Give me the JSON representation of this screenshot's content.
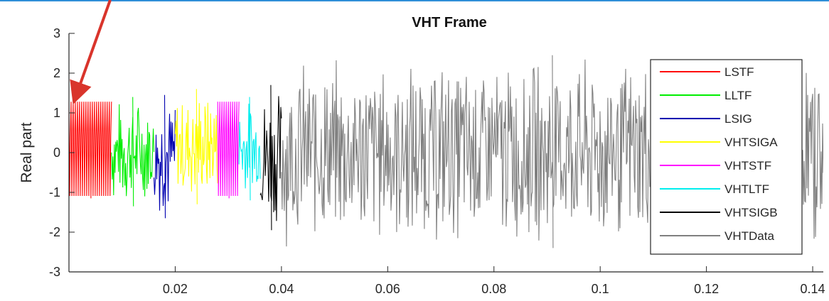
{
  "chart_data": {
    "type": "line",
    "title": "VHT Frame",
    "xlabel": "",
    "ylabel": "Real part",
    "xlim": [
      0.0,
      0.142
    ],
    "ylim": [
      -3,
      3
    ],
    "x_ticks": [
      0.02,
      0.04,
      0.06,
      0.08,
      0.1,
      0.12,
      0.14
    ],
    "x_tick_labels": [
      "0.02",
      "0.04",
      "0.06",
      "0.08",
      "0.1",
      "0.12",
      "0.14"
    ],
    "y_ticks": [
      -3,
      -2,
      -1,
      0,
      1,
      2,
      3
    ],
    "y_tick_labels": [
      "-3",
      "-2",
      "-1",
      "0",
      "1",
      "2",
      "3"
    ],
    "grid": false,
    "legend_position": "right",
    "series": [
      {
        "name": "LSTF",
        "color": "#ff0000",
        "x_range": [
          0.0,
          0.008
        ],
        "y_min": -1.15,
        "y_max": 1.28
      },
      {
        "name": "LLTF",
        "color": "#00ee00",
        "x_range": [
          0.008,
          0.016
        ],
        "y_min": -1.35,
        "y_max": 1.4
      },
      {
        "name": "LSIG",
        "color": "#0000b0",
        "x_range": [
          0.016,
          0.02
        ],
        "y_min": -1.65,
        "y_max": 1.45
      },
      {
        "name": "VHTSIGA",
        "color": "#ffff00",
        "x_range": [
          0.02,
          0.028
        ],
        "y_min": -1.3,
        "y_max": 1.6
      },
      {
        "name": "VHTSTF",
        "color": "#ff00ff",
        "x_range": [
          0.028,
          0.032
        ],
        "y_min": -1.15,
        "y_max": 1.28
      },
      {
        "name": "VHTLTF",
        "color": "#00eeee",
        "x_range": [
          0.032,
          0.036
        ],
        "y_min": -1.2,
        "y_max": 1.4
      },
      {
        "name": "VHTSIGB",
        "color": "#000000",
        "x_range": [
          0.036,
          0.04
        ],
        "y_min": -1.95,
        "y_max": 1.7
      },
      {
        "name": "VHTData",
        "color": "#808080",
        "x_range": [
          0.04,
          0.142
        ],
        "y_min": -2.4,
        "y_max": 2.45
      }
    ]
  },
  "annotation": {
    "color": "#d9342b"
  }
}
